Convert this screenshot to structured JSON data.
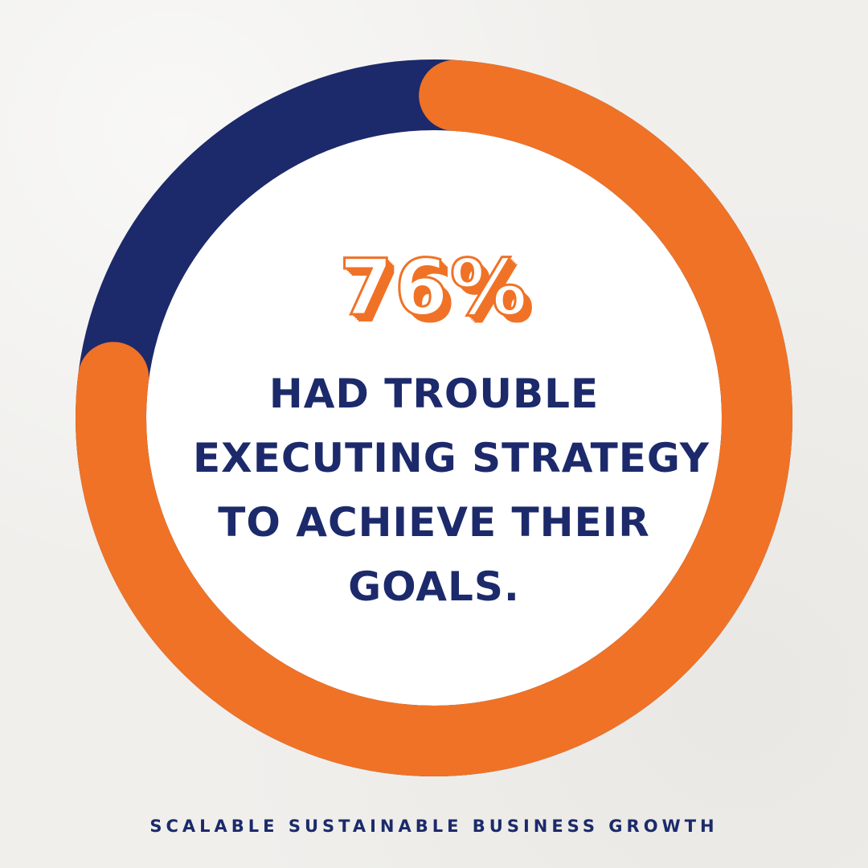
{
  "chart_data": {
    "type": "pie",
    "value_label": "76%",
    "values": [
      76,
      24
    ],
    "colors": [
      "#f07226",
      "#1c2a6b"
    ],
    "caption_lines": [
      "HAD TROUBLE",
      "EXECUTING STRATEGY",
      "TO ACHIEVE THEIR",
      "GOALS."
    ]
  },
  "footer": {
    "text": "SCALABLE SUSTAINABLE BUSINESS GROWTH"
  },
  "colors": {
    "accent": "#f07226",
    "navy": "#1c2a6b",
    "background": "#f0efec",
    "inner": "#ffffff"
  }
}
